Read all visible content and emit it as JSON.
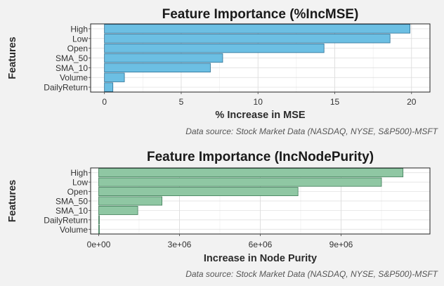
{
  "chart_data": [
    {
      "type": "bar",
      "orientation": "horizontal",
      "title": "Feature Importance (%IncMSE)",
      "xlabel": "% Increase in MSE",
      "ylabel": "Features",
      "caption": "Data source: Stock Market Data (NASDAQ, NYSE, S&P500)-MSFT",
      "categories": [
        "High",
        "Low",
        "Open",
        "SMA_50",
        "SMA_10",
        "Volume",
        "DailyReturn"
      ],
      "values": [
        19.9,
        18.6,
        14.3,
        7.7,
        6.9,
        1.3,
        0.55
      ],
      "xlim": [
        -0.9,
        21.2
      ],
      "xticks": [
        0,
        5,
        10,
        15,
        20
      ],
      "xtick_labels": [
        "0",
        "5",
        "10",
        "15",
        "20"
      ],
      "bar_color": "#6cbfe3",
      "bar_border": "#2c6f94",
      "grid": true
    },
    {
      "type": "bar",
      "orientation": "horizontal",
      "title": "Feature Importance (IncNodePurity)",
      "xlabel": "Increase in Node Purity",
      "ylabel": "Features",
      "caption": "Data source: Stock Market Data (NASDAQ, NYSE, S&P500)-MSFT",
      "categories": [
        "High",
        "Low",
        "Open",
        "SMA_50",
        "SMA_10",
        "DailyReturn",
        "Volume"
      ],
      "values": [
        11300000,
        10500000,
        7400000,
        2350000,
        1450000,
        25000,
        25000
      ],
      "xlim": [
        -300000,
        12300000
      ],
      "xticks": [
        0,
        3000000,
        6000000,
        9000000
      ],
      "xtick_labels": [
        "0e+00",
        "3e+06",
        "6e+06",
        "9e+06"
      ],
      "bar_color": "#8fc7a3",
      "bar_border": "#3f7c58",
      "grid": true
    }
  ]
}
